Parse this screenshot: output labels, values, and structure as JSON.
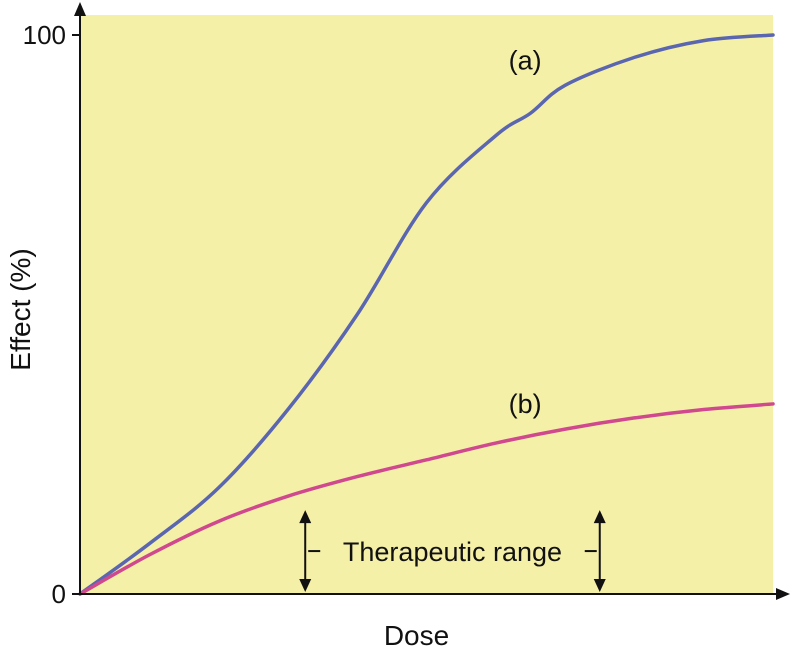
{
  "chart_data": {
    "type": "line",
    "xlabel": "Dose",
    "ylabel": "Effect (%)",
    "ylim": [
      0,
      100
    ],
    "y_ticks": [
      "0",
      "100"
    ],
    "x_ticks": [],
    "grid": false,
    "background_color": "#f5f0a8",
    "series": [
      {
        "name": "(a)",
        "color": "#5a66b0",
        "x": [
          0,
          0.1,
          0.2,
          0.3,
          0.4,
          0.5,
          0.6,
          0.65,
          0.7,
          0.8,
          0.9,
          1.0
        ],
        "y": [
          0,
          9,
          19,
          33,
          50,
          70,
          82,
          86,
          91,
          96,
          99,
          100
        ]
      },
      {
        "name": "(b)",
        "color": "#d0488e",
        "x": [
          0,
          0.1,
          0.2,
          0.3,
          0.4,
          0.5,
          0.6,
          0.7,
          0.8,
          0.9,
          1.0
        ],
        "y": [
          0,
          7,
          13,
          17.5,
          21,
          24,
          27,
          29.5,
          31.5,
          33,
          34
        ]
      }
    ],
    "annotations": [
      {
        "text": "Therapeutic range",
        "x_from": 0.325,
        "x_to": 0.75,
        "y_bottom": 0,
        "y_top": 15
      }
    ]
  }
}
